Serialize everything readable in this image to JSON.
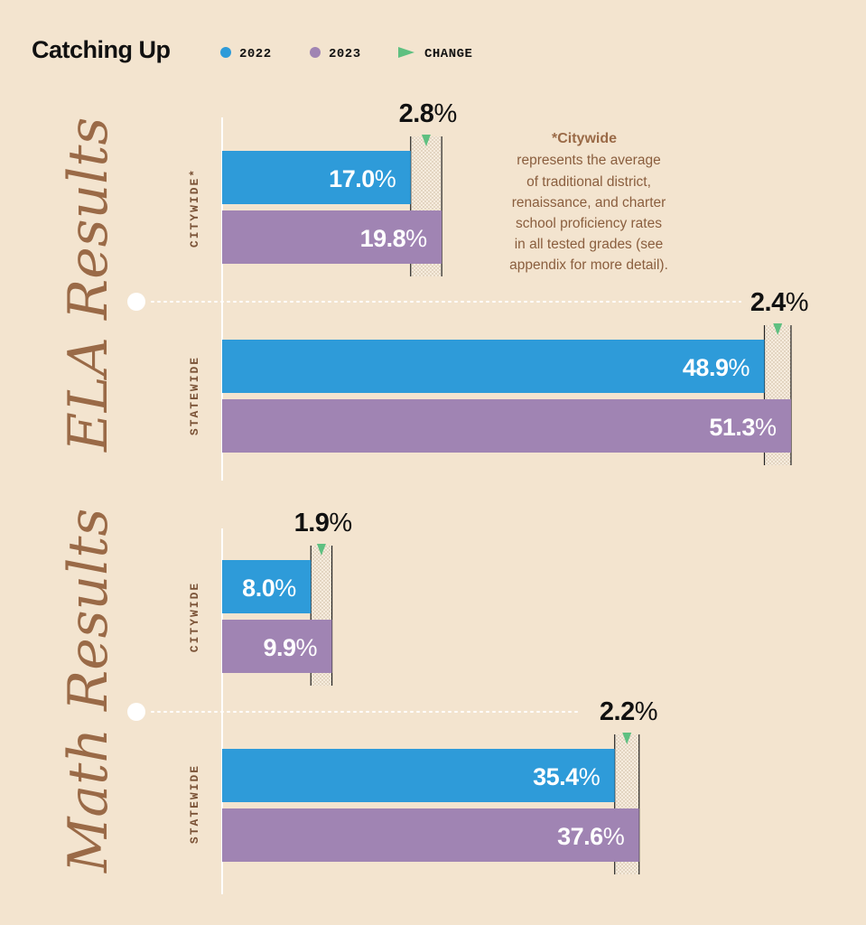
{
  "title": "Catching Up",
  "legend": [
    {
      "label": "2022",
      "color": "#2e9bd9",
      "shape": "circle"
    },
    {
      "label": "2023",
      "color": "#a084b3",
      "shape": "circle"
    },
    {
      "label": "CHANGE",
      "color": "#5fc081",
      "shape": "triangle"
    }
  ],
  "footnote": {
    "head": "*Citywide",
    "lines": [
      "represents the average",
      "of traditional district,",
      "renaissance, and charter",
      "school proficiency rates",
      "in all tested grades (see",
      "appendix for more detail)."
    ]
  },
  "colors": {
    "background": "#f3e4cf",
    "year_2022": "#2e9bd9",
    "year_2023": "#a084b3",
    "change": "#5fc081",
    "section_title": "#9a6a47",
    "group_label": "#7a5236"
  },
  "chart_data": {
    "type": "bar",
    "orientation": "horizontal",
    "title": "Catching Up",
    "series_names": [
      "2022",
      "2023",
      "CHANGE"
    ],
    "sections": [
      {
        "name": "ELA Results",
        "groups": [
          {
            "label": "CITYWIDE*",
            "v2022": 17.0,
            "v2023": 19.8,
            "change": 2.8
          },
          {
            "label": "STATEWIDE",
            "v2022": 48.9,
            "v2023": 51.3,
            "change": 2.4
          }
        ]
      },
      {
        "name": "Math Results",
        "groups": [
          {
            "label": "CITYWIDE",
            "v2022": 8.0,
            "v2023": 9.9,
            "change": 1.9
          },
          {
            "label": "STATEWIDE",
            "v2022": 35.4,
            "v2023": 37.6,
            "change": 2.2
          }
        ]
      }
    ],
    "unit": "%"
  }
}
